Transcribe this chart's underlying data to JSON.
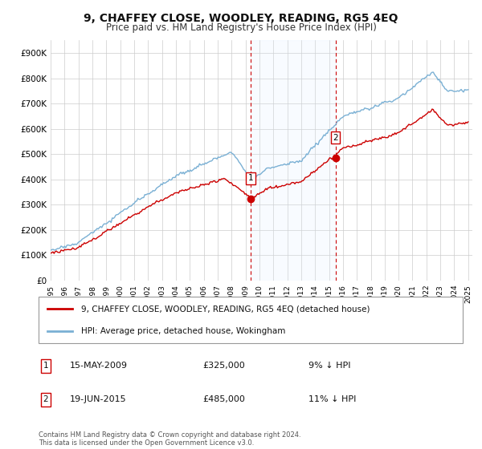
{
  "title": "9, CHAFFEY CLOSE, WOODLEY, READING, RG5 4EQ",
  "subtitle": "Price paid vs. HM Land Registry's House Price Index (HPI)",
  "ylim": [
    0,
    950000
  ],
  "yticks": [
    0,
    100000,
    200000,
    300000,
    400000,
    500000,
    600000,
    700000,
    800000,
    900000
  ],
  "ytick_labels": [
    "£0",
    "£100K",
    "£200K",
    "£300K",
    "£400K",
    "£500K",
    "£600K",
    "£700K",
    "£800K",
    "£900K"
  ],
  "title_fontsize": 10,
  "subtitle_fontsize": 8.5,
  "bg_color": "#ffffff",
  "plot_bg_color": "#ffffff",
  "grid_color": "#cccccc",
  "sale1_date": 2009.37,
  "sale1_price": 325000,
  "sale2_date": 2015.46,
  "sale2_price": 485000,
  "legend_entry1": "9, CHAFFEY CLOSE, WOODLEY, READING, RG5 4EQ (detached house)",
  "legend_entry2": "HPI: Average price, detached house, Wokingham",
  "footer": "Contains HM Land Registry data © Crown copyright and database right 2024.\nThis data is licensed under the Open Government Licence v3.0.",
  "hpi_color": "#7ab0d4",
  "price_color": "#cc0000",
  "vline_color": "#cc0000",
  "shade_color": "#ddeeff",
  "marker_color": "#cc0000"
}
